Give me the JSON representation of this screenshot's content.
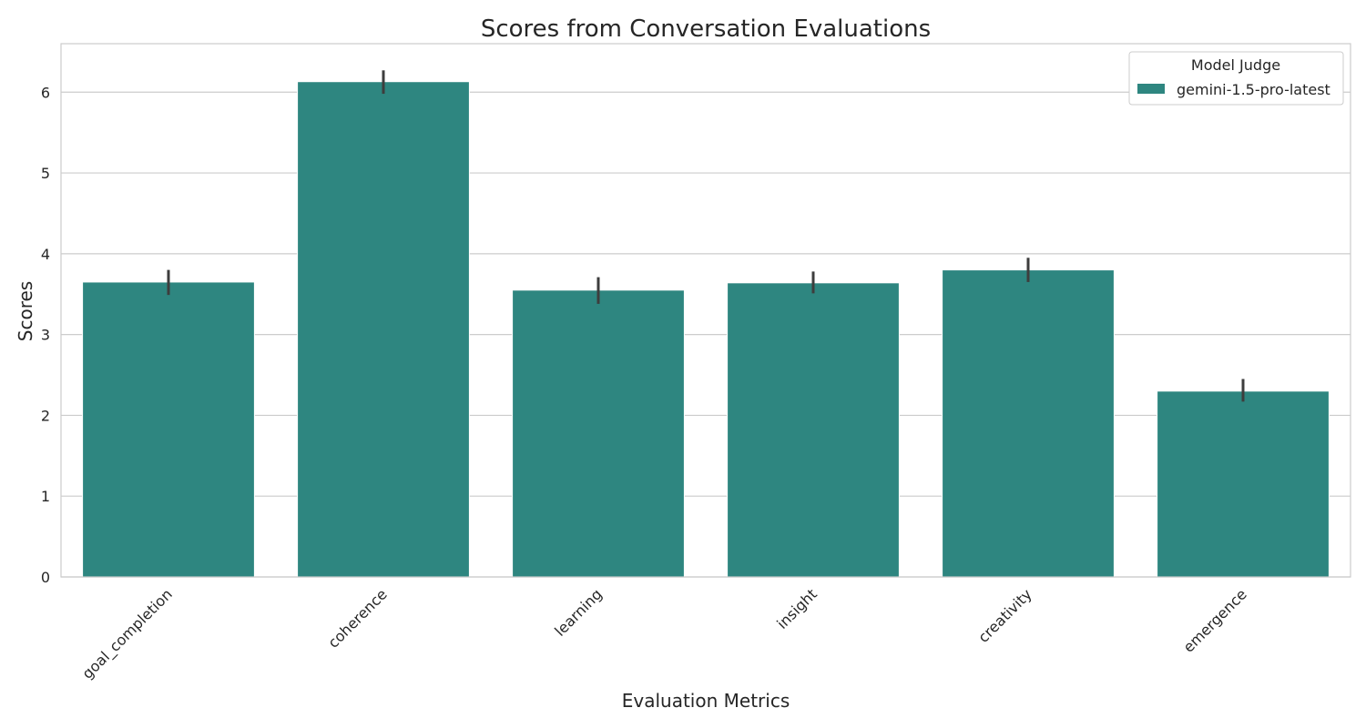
{
  "chart_data": {
    "type": "bar",
    "title": "Scores from Conversation Evaluations",
    "xlabel": "Evaluation Metrics",
    "ylabel": "Scores",
    "categories": [
      "goal_completion",
      "coherence",
      "learning",
      "insight",
      "creativity",
      "emergence"
    ],
    "series": [
      {
        "name": "gemini-1.5-pro-latest",
        "color": "#2e8680",
        "values": [
          3.65,
          6.13,
          3.55,
          3.64,
          3.8,
          2.3
        ],
        "error_low": [
          3.49,
          5.98,
          3.38,
          3.51,
          3.65,
          2.17
        ],
        "error_high": [
          3.8,
          6.27,
          3.71,
          3.78,
          3.95,
          2.45
        ]
      }
    ],
    "ylim": [
      0,
      6.6
    ],
    "yticks": [
      0,
      1,
      2,
      3,
      4,
      5,
      6
    ],
    "grid": true,
    "legend": {
      "title": "Model Judge",
      "position": "top-right"
    },
    "colors": {
      "grid": "#cccccc",
      "axes": "#cccccc",
      "error_bar": "#3d3d3d",
      "bar_edge": "#ffffff"
    }
  }
}
